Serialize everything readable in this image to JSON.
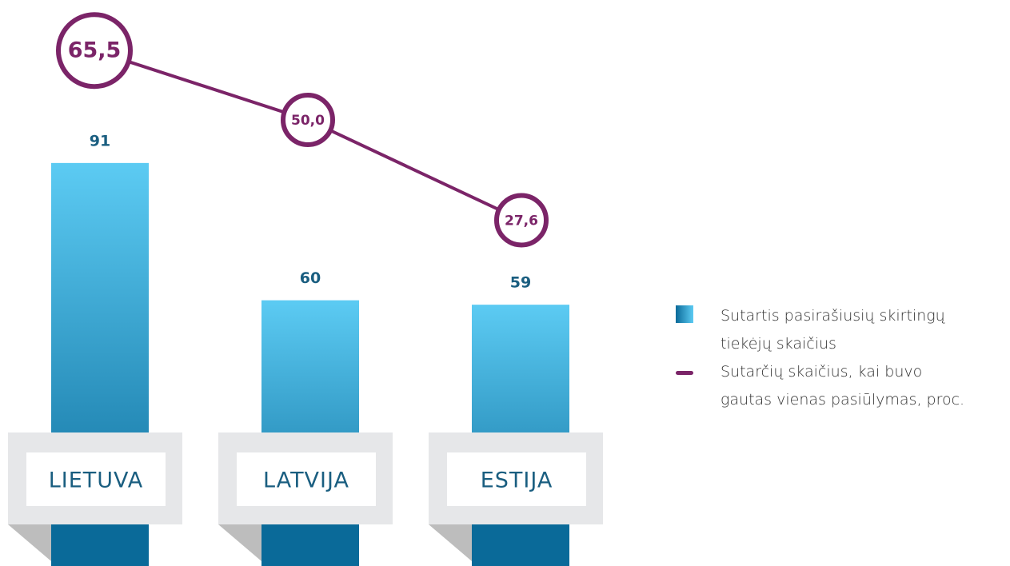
{
  "chart_data": {
    "type": "bar",
    "categories": [
      "LIETUVA",
      "LATVIJA",
      "ESTIJA"
    ],
    "series": [
      {
        "name": "Sutartis pasirašiusių skirtingų tiekėjų skaičius",
        "type": "bar",
        "color": "#0a6a99",
        "values": [
          91,
          60,
          59
        ]
      },
      {
        "name": "Sutarčių skaičius, kai buvo gautas vienas pasiūlymas, proc.",
        "type": "line",
        "color": "#7b2468",
        "values": [
          65.5,
          50.0,
          27.6
        ],
        "value_labels": [
          "65,5",
          "50,0",
          "27,6"
        ]
      }
    ]
  }
}
